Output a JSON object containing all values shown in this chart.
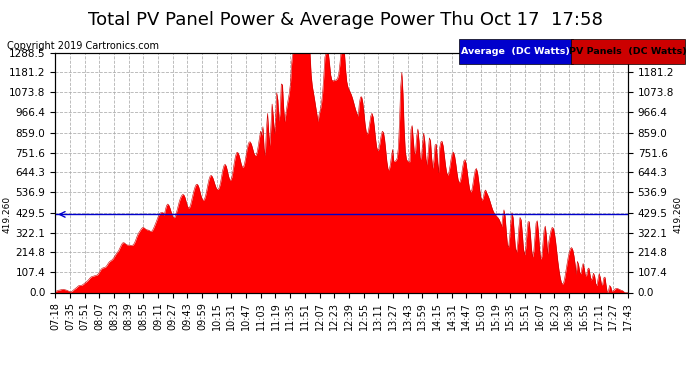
{
  "title": "Total PV Panel Power & Average Power Thu Oct 17  17:58",
  "copyright": "Copyright 2019 Cartronics.com",
  "legend_labels": [
    "Average  (DC Watts)",
    "PV Panels  (DC Watts)"
  ],
  "legend_bg_colors": [
    "#0000cc",
    "#cc0000"
  ],
  "legend_text_colors": [
    "#ffffff",
    "#000000"
  ],
  "average_value": 419.26,
  "y_min": 0.0,
  "y_max": 1288.5,
  "y_ticks": [
    0.0,
    107.4,
    214.8,
    322.1,
    429.5,
    536.9,
    644.3,
    751.6,
    859.0,
    966.4,
    1073.8,
    1181.2,
    1288.5
  ],
  "y_tick_labels": [
    "0.0",
    "107.4",
    "214.8",
    "322.1",
    "429.5",
    "536.9",
    "644.3",
    "751.6",
    "859.0",
    "966.4",
    "1073.8",
    "1181.2",
    "1288.5"
  ],
  "avg_label": "419.260",
  "x_labels": [
    "07:18",
    "07:35",
    "07:51",
    "08:07",
    "08:23",
    "08:39",
    "08:55",
    "09:11",
    "09:27",
    "09:43",
    "09:59",
    "10:15",
    "10:31",
    "10:47",
    "11:03",
    "11:19",
    "11:35",
    "11:51",
    "12:07",
    "12:23",
    "12:39",
    "12:55",
    "13:11",
    "13:27",
    "13:43",
    "13:59",
    "14:15",
    "14:31",
    "14:47",
    "15:03",
    "15:19",
    "15:35",
    "15:51",
    "16:07",
    "16:23",
    "16:39",
    "16:55",
    "17:11",
    "17:27",
    "17:43"
  ],
  "fill_color": "#ff0000",
  "line_color": "#cc0000",
  "avg_line_color": "#0000cc",
  "background_color": "#ffffff",
  "grid_color": "#aaaaaa",
  "title_fontsize": 13,
  "tick_fontsize": 7.5,
  "copyright_fontsize": 7
}
